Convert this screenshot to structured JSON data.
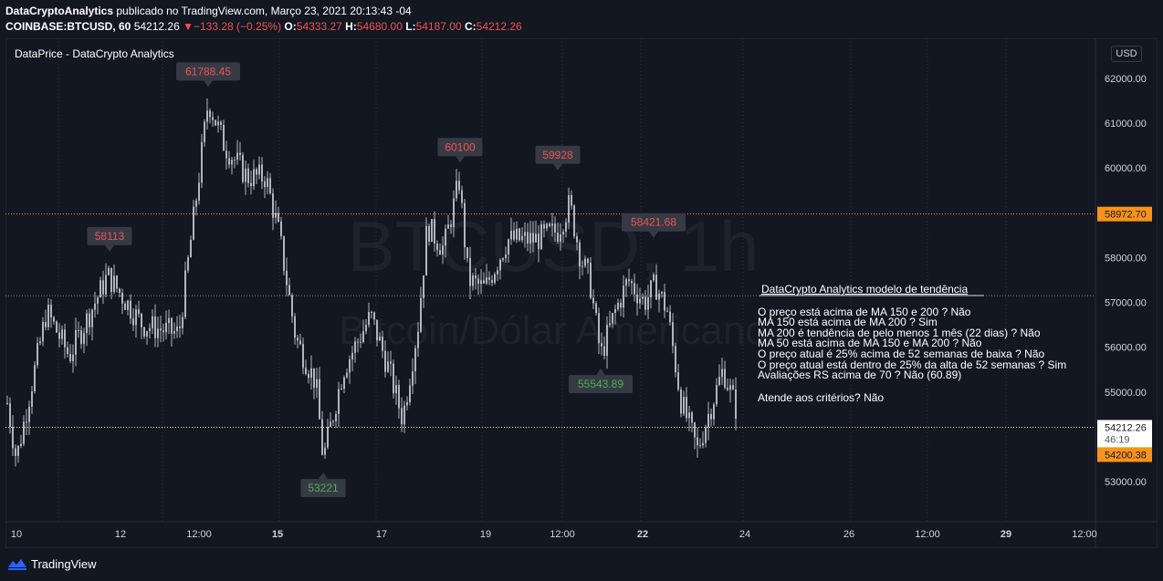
{
  "header": {
    "author": "DataCryptoAnalytics",
    "published_text": "publicado no TradingView.com, Março 23, 2021 20:13:43 -04",
    "symbol": "COINBASE:BTCUSD, 60",
    "last_price": "54212.26",
    "change_arrow": "▼",
    "change": "−133.28 (−0.25%)",
    "open_label": "O:",
    "open": "54333.27",
    "high_label": "H:",
    "high": "54680.00",
    "low_label": "L:",
    "low": "54187.00",
    "close_label": "C:",
    "close": "54212.26",
    "label_color": "#ffffff",
    "value_color": "#ef5350"
  },
  "indicator_title": "DataPrice - DataCrypto Analytics",
  "currency": "USD",
  "watermark": {
    "line1": "BTCUSD, 1h",
    "line2": "Bitcoin/Dólar Americano"
  },
  "price_axis": {
    "ticks": [
      "62000.00",
      "61000.00",
      "60000.00",
      "58000.00",
      "57000.00",
      "56000.00",
      "55000.00",
      "53000.00"
    ],
    "tick_values": [
      62000,
      61000,
      60000,
      58000,
      57000,
      56000,
      55000,
      53000
    ],
    "current_price": "54212.26",
    "countdown": "46:19",
    "orange_line_upper": "58972.70",
    "orange_line_lower": "54200.38",
    "orange_color": "#f7931a"
  },
  "time_axis": {
    "labels": [
      "10",
      "12",
      "12:00",
      "15",
      "17",
      "19",
      "12:00",
      "22",
      "24",
      "26",
      "12:00",
      "29",
      "12:00"
    ],
    "bold": [
      false,
      false,
      false,
      true,
      false,
      false,
      false,
      true,
      false,
      false,
      false,
      true,
      false
    ]
  },
  "price_labels": [
    {
      "text": "61788.45",
      "type": "high",
      "value": 61788.45
    },
    {
      "text": "58113",
      "type": "high",
      "value": 58113
    },
    {
      "text": "60100",
      "type": "high",
      "value": 60100
    },
    {
      "text": "59928",
      "type": "high",
      "value": 59928
    },
    {
      "text": "58421.68",
      "type": "high",
      "value": 58421.68
    },
    {
      "text": "53221",
      "type": "low",
      "value": 53221
    },
    {
      "text": "55543.89",
      "type": "low",
      "value": 55543.89
    }
  ],
  "trend_model": {
    "title": "DataCrypto Analytics modelo de tendência",
    "lines": [
      "O preço está acima de MA 150 e 200 ? Não",
      "MA 150 está acima de MA 200 ? Sim",
      "MA 200 é tendência de pelo menos 1 mês (22 dias) ? Não",
      "MA 50 está acima de MA 150 e MA 200 ? Não",
      "O preço atual é 25% acima de 52 semanas de baixa ? Não",
      "O preço atual está dentro de 25% da alta de 52 semanas ? Sim",
      "Avaliações RS acima de 70 ? Não (60.89)"
    ],
    "conclusion": "Atende aos critérios? Não"
  },
  "footer": {
    "brand": "TradingView"
  },
  "colors": {
    "background": "#131722",
    "grid": "#2a2e39",
    "candle": "#b2b5be",
    "high_label_text": "#ef5350",
    "low_label_text": "#4caf50",
    "label_bg": "#363a45"
  }
}
